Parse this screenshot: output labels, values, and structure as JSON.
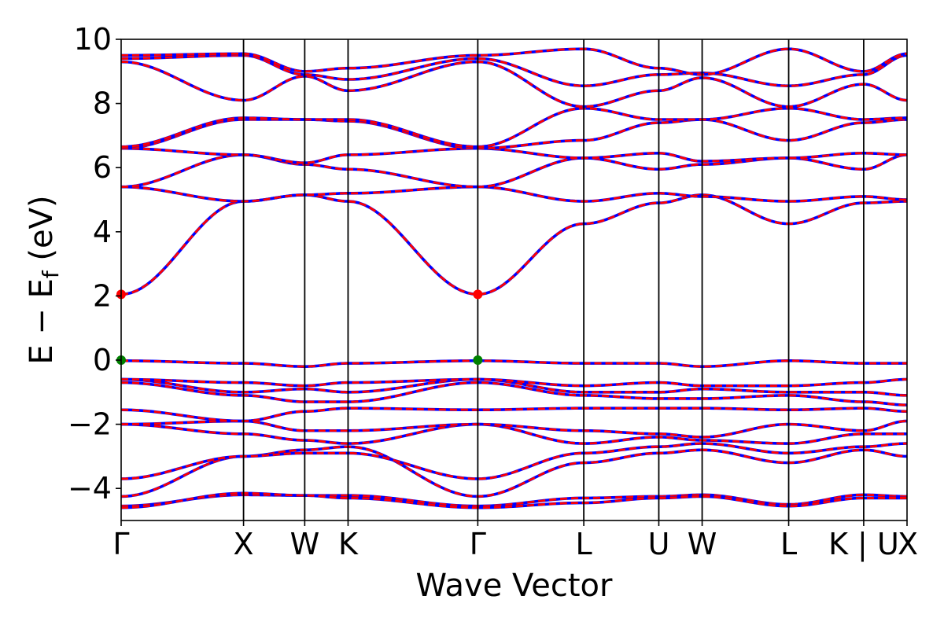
{
  "chart_data": {
    "type": "line",
    "xlabel": "Wave Vector",
    "ylabel": {
      "main": "E − E",
      "subscript": "f",
      "unit": " (eV)"
    },
    "ylim": [
      -5,
      10
    ],
    "yticks": [
      -4,
      -2,
      0,
      2,
      4,
      6,
      8,
      10
    ],
    "ytick_labels": [
      "−4",
      "−2",
      "0",
      "2",
      "4",
      "6",
      "8",
      "10"
    ],
    "grid": false,
    "kpath": [
      {
        "label": "Γ",
        "x": 0.0
      },
      {
        "label": "X",
        "x": 1.0
      },
      {
        "label": "W",
        "x": 1.5
      },
      {
        "label": "K",
        "x": 1.854
      },
      {
        "label": "Γ",
        "x": 2.914
      },
      {
        "label": "L",
        "x": 3.78
      },
      {
        "label": "U",
        "x": 4.393
      },
      {
        "label": "W",
        "x": 4.747
      },
      {
        "label": "L",
        "x": 5.454
      },
      {
        "label": "K | U",
        "x": 6.067
      },
      {
        "label": "X",
        "x": 6.421
      }
    ],
    "series_styles": [
      {
        "color": "#0000ff",
        "style": "solid",
        "width": 3.6
      },
      {
        "color": "#ff0000",
        "style": "dashed",
        "width": 2.8
      }
    ],
    "markers": [
      {
        "x": 0.0,
        "y": 2.05,
        "color": "#ff0000"
      },
      {
        "x": 2.914,
        "y": 2.05,
        "color": "#ff0000"
      },
      {
        "x": 0.0,
        "y": 0.0,
        "color": "#008000"
      },
      {
        "x": 2.914,
        "y": 0.0,
        "color": "#008000"
      }
    ],
    "bands": [
      [
        -4.55,
        -4.2,
        -4.22,
        -4.22,
        -4.55,
        -4.3,
        -4.25,
        -4.2,
        -4.5,
        -4.2,
        -4.25
      ],
      [
        -4.6,
        -4.15,
        -4.22,
        -4.3,
        -4.6,
        -4.45,
        -4.3,
        -4.25,
        -4.55,
        -4.3,
        -4.3
      ],
      [
        -4.25,
        -3.0,
        -2.8,
        -2.7,
        -4.25,
        -3.2,
        -2.9,
        -2.8,
        -3.2,
        -2.8,
        -3.0
      ],
      [
        -3.7,
        -3.0,
        -2.9,
        -2.9,
        -3.7,
        -2.9,
        -2.7,
        -2.6,
        -2.9,
        -2.7,
        -2.6
      ],
      [
        -2.0,
        -2.3,
        -2.5,
        -2.6,
        -2.0,
        -2.6,
        -2.4,
        -2.5,
        -2.6,
        -2.3,
        -2.3
      ],
      [
        -2.0,
        -1.9,
        -2.2,
        -2.2,
        -2.0,
        -2.2,
        -2.3,
        -2.4,
        -2.0,
        -2.2,
        -1.9
      ],
      [
        -1.55,
        -1.9,
        -1.6,
        -1.5,
        -1.55,
        -1.5,
        -1.5,
        -1.5,
        -1.55,
        -1.5,
        -1.6
      ],
      [
        -0.7,
        -1.1,
        -1.3,
        -1.3,
        -0.7,
        -1.1,
        -1.2,
        -1.2,
        -1.1,
        -1.3,
        -1.4
      ],
      [
        -0.6,
        -1.0,
        -0.9,
        -1.0,
        -0.6,
        -1.0,
        -1.0,
        -0.9,
        -1.0,
        -1.0,
        -1.1
      ],
      [
        -0.6,
        -0.7,
        -0.8,
        -0.7,
        -0.6,
        -0.8,
        -0.7,
        -0.8,
        -0.8,
        -0.7,
        -0.6
      ],
      [
        -0.02,
        -0.1,
        -0.2,
        -0.1,
        -0.02,
        -0.1,
        -0.1,
        -0.2,
        -0.02,
        -0.1,
        -0.1
      ],
      [
        2.05,
        4.95,
        5.15,
        4.95,
        2.05,
        4.25,
        4.9,
        5.15,
        4.25,
        4.9,
        4.95
      ],
      [
        5.4,
        4.95,
        5.15,
        5.2,
        5.4,
        4.95,
        5.2,
        5.1,
        4.95,
        5.1,
        5.0
      ],
      [
        5.4,
        6.4,
        6.1,
        5.95,
        5.4,
        6.3,
        5.95,
        6.1,
        6.3,
        5.95,
        6.4
      ],
      [
        6.6,
        6.4,
        6.15,
        6.4,
        6.6,
        6.3,
        6.45,
        6.2,
        6.3,
        6.45,
        6.4
      ],
      [
        6.6,
        7.5,
        7.5,
        7.45,
        6.6,
        6.85,
        7.4,
        7.5,
        6.85,
        7.4,
        7.5
      ],
      [
        6.65,
        7.55,
        7.5,
        7.5,
        6.65,
        7.85,
        7.5,
        7.5,
        7.85,
        7.5,
        7.55
      ],
      [
        9.3,
        8.1,
        8.85,
        8.4,
        9.3,
        7.9,
        8.4,
        8.8,
        7.9,
        8.6,
        8.1
      ],
      [
        9.4,
        9.5,
        8.9,
        8.75,
        9.4,
        8.55,
        8.9,
        8.95,
        8.55,
        8.9,
        9.5
      ],
      [
        9.5,
        9.55,
        9.0,
        9.1,
        9.5,
        9.7,
        9.1,
        8.9,
        9.7,
        9.0,
        9.55
      ]
    ]
  }
}
